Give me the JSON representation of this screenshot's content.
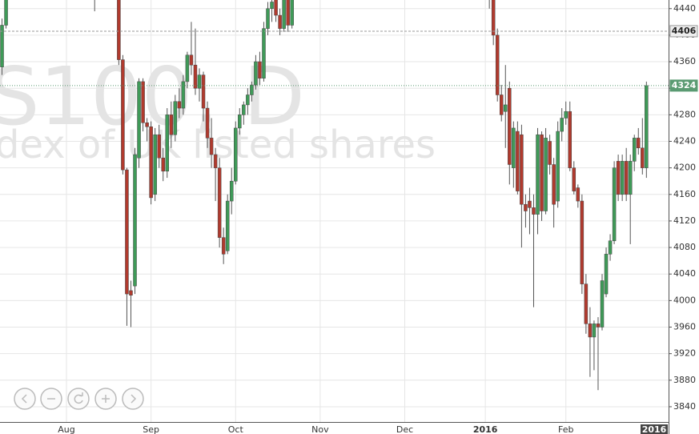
{
  "chart_data": {
    "type": "candlestick",
    "watermark": [
      "S100, D",
      "dex of UK listed shares"
    ],
    "categories": [
      null,
      null,
      null,
      null,
      null,
      null,
      null,
      null,
      null,
      null,
      null,
      null,
      null,
      null,
      null,
      null,
      "Aug",
      null,
      null,
      null,
      null,
      null,
      null,
      null,
      null,
      null,
      null,
      null,
      null,
      null,
      null,
      null,
      null,
      null,
      null,
      null,
      null,
      "Sep",
      null,
      null,
      null,
      null,
      null,
      null,
      null,
      null,
      null,
      null,
      null,
      null,
      null,
      null,
      null,
      null,
      null,
      null,
      null,
      null,
      "Oct",
      null,
      null,
      null,
      null,
      null,
      null,
      null,
      null,
      null,
      null,
      null,
      null,
      null,
      null,
      null,
      null,
      null,
      null,
      null,
      null,
      "Nov",
      null,
      null,
      null,
      null,
      null,
      null,
      null,
      null,
      null,
      null,
      null,
      null,
      null,
      null,
      null,
      null,
      null,
      null,
      null,
      null,
      "Dec",
      null,
      null,
      null,
      null,
      null,
      null,
      null,
      null,
      null,
      null,
      null,
      null,
      null,
      null,
      null,
      null,
      null,
      null,
      null,
      "2016",
      null,
      null,
      null,
      null,
      null,
      null,
      null,
      null,
      null,
      null,
      null,
      null,
      null,
      null,
      null,
      null,
      null,
      null,
      null,
      "Feb",
      null,
      null,
      null,
      null,
      null,
      null,
      null,
      null,
      null,
      null,
      null,
      null,
      null,
      null,
      null,
      null,
      null,
      null,
      null,
      null,
      null,
      null,
      null,
      null,
      null
    ],
    "ohlc": [
      [
        4352,
        4425,
        4340,
        4415
      ],
      [
        4415,
        4470,
        4410,
        4460
      ],
      null,
      null,
      null,
      null,
      null,
      null,
      null,
      null,
      null,
      null,
      null,
      null,
      null,
      null,
      null,
      null,
      null,
      null,
      null,
      null,
      null,
      [
        4475,
        4480,
        4436,
        4460
      ],
      null,
      null,
      null,
      null,
      null,
      [
        4470,
        4480,
        4355,
        4363
      ],
      [
        4363,
        4370,
        4190,
        4197
      ],
      [
        4197,
        4200,
        3962,
        4010
      ],
      [
        4015,
        4030,
        3960,
        4008
      ],
      [
        4022,
        4230,
        4010,
        4220
      ],
      [
        4215,
        4335,
        4200,
        4330
      ],
      [
        4330,
        4335,
        4255,
        4268
      ],
      [
        4268,
        4275,
        4240,
        4262
      ],
      [
        4262,
        4270,
        4145,
        4155
      ],
      [
        4160,
        4260,
        4150,
        4250
      ],
      [
        4250,
        4265,
        4200,
        4215
      ],
      [
        4215,
        4230,
        4180,
        4195
      ],
      [
        4195,
        4290,
        4185,
        4280
      ],
      [
        4280,
        4300,
        4230,
        4250
      ],
      [
        4250,
        4310,
        4240,
        4300
      ],
      [
        4300,
        4320,
        4275,
        4290
      ],
      [
        4290,
        4340,
        4280,
        4330
      ],
      [
        4330,
        4375,
        4320,
        4370
      ],
      [
        4370,
        4420,
        4340,
        4355
      ],
      [
        4355,
        4410,
        4310,
        4320
      ],
      [
        4320,
        4350,
        4300,
        4340
      ],
      [
        4340,
        4345,
        4270,
        4290
      ],
      [
        4290,
        4300,
        4230,
        4245
      ],
      [
        4245,
        4275,
        4200,
        4220
      ],
      [
        4220,
        4230,
        4150,
        4200
      ],
      [
        4200,
        4215,
        4080,
        4095
      ],
      [
        4095,
        4110,
        4055,
        4070
      ],
      [
        4075,
        4160,
        4070,
        4150
      ],
      [
        4150,
        4200,
        4130,
        4180
      ],
      [
        4180,
        4270,
        4175,
        4260
      ],
      [
        4260,
        4290,
        4250,
        4280
      ],
      [
        4280,
        4300,
        4265,
        4295
      ],
      [
        4295,
        4320,
        4280,
        4310
      ],
      [
        4310,
        4330,
        4300,
        4325
      ],
      [
        4325,
        4370,
        4318,
        4360
      ],
      [
        4360,
        4375,
        4325,
        4335
      ],
      [
        4335,
        4420,
        4330,
        4410
      ],
      [
        4410,
        4450,
        4400,
        4440
      ],
      [
        4440,
        4460,
        4420,
        4450
      ],
      [
        4455,
        4470,
        4420,
        4430
      ],
      [
        4430,
        4440,
        4400,
        4410
      ],
      [
        4410,
        4470,
        4405,
        4460
      ],
      [
        4460,
        4470,
        4405,
        4415
      ],
      [
        4415,
        4470,
        4410,
        4460
      ],
      null,
      null,
      null,
      null,
      null,
      null,
      null,
      null,
      null,
      null,
      null,
      null,
      null,
      null,
      null,
      null,
      null,
      null,
      null,
      null,
      null,
      null,
      null,
      null,
      null,
      null,
      null,
      null,
      null,
      null,
      null,
      null,
      null,
      null,
      null,
      null,
      null,
      null,
      null,
      null,
      null,
      null,
      null,
      null,
      null,
      null,
      null,
      null,
      [
        4500,
        4510,
        4440,
        4460
      ],
      [
        4460,
        4470,
        4385,
        4400
      ],
      [
        4400,
        4410,
        4300,
        4310
      ],
      [
        4310,
        4325,
        4270,
        4280
      ],
      [
        4285,
        4355,
        4230,
        4295
      ],
      [
        4320,
        4330,
        4175,
        4205
      ],
      [
        4200,
        4270,
        4170,
        4260
      ],
      [
        4255,
        4270,
        4160,
        4165
      ],
      [
        4250,
        4265,
        4080,
        4145
      ],
      [
        4145,
        4160,
        4110,
        4135
      ],
      [
        4150,
        4170,
        4100,
        4140
      ],
      [
        4140,
        4160,
        3990,
        4130
      ],
      [
        4130,
        4260,
        4100,
        4250
      ],
      [
        4250,
        4255,
        4120,
        4135
      ],
      [
        4135,
        4260,
        4130,
        4245
      ],
      [
        4240,
        4250,
        4190,
        4205
      ],
      [
        4205,
        4215,
        4110,
        4145
      ],
      [
        4150,
        4270,
        4140,
        4255
      ],
      [
        4255,
        4290,
        4240,
        4275
      ],
      [
        4275,
        4300,
        4265,
        4285
      ],
      [
        4285,
        4300,
        4195,
        4200
      ],
      [
        4200,
        4210,
        4160,
        4165
      ],
      [
        4170,
        4175,
        4140,
        4150
      ],
      [
        4150,
        4160,
        4010,
        4025
      ],
      [
        4025,
        4040,
        3950,
        3965
      ],
      [
        3965,
        3990,
        3885,
        3945
      ],
      [
        3945,
        3970,
        3895,
        3965
      ],
      [
        3965,
        3975,
        3865,
        3960
      ],
      [
        3960,
        4040,
        3955,
        4030
      ],
      [
        4010,
        4080,
        4005,
        4070
      ],
      [
        4070,
        4100,
        4060,
        4090
      ],
      [
        4090,
        4210,
        4085,
        4200
      ],
      [
        4210,
        4220,
        4150,
        4160
      ],
      [
        4160,
        4220,
        4150,
        4210
      ],
      [
        4210,
        4230,
        4150,
        4160
      ],
      [
        4160,
        4220,
        4085,
        4210
      ],
      [
        4210,
        4250,
        4195,
        4245
      ],
      [
        4245,
        4260,
        4220,
        4230
      ],
      [
        4230,
        4275,
        4190,
        4200
      ],
      [
        4200,
        4330,
        4185,
        4324
      ],
      null,
      null,
      null,
      null,
      null
    ],
    "up_color": "#3f9a58",
    "down_color": "#b03a2e",
    "ylim": [
      3817,
      4453
    ],
    "yticks": [
      3840,
      3880,
      3920,
      3960,
      4000,
      4040,
      4080,
      4120,
      4160,
      4200,
      4240,
      4280,
      4320,
      4360,
      4400,
      4440
    ],
    "grid": true,
    "price_lines": [
      {
        "value": 4406,
        "color": "#9a9a9a"
      },
      {
        "value": 4324,
        "color": "#5b9b72"
      }
    ],
    "current_date_label": "2016"
  }
}
